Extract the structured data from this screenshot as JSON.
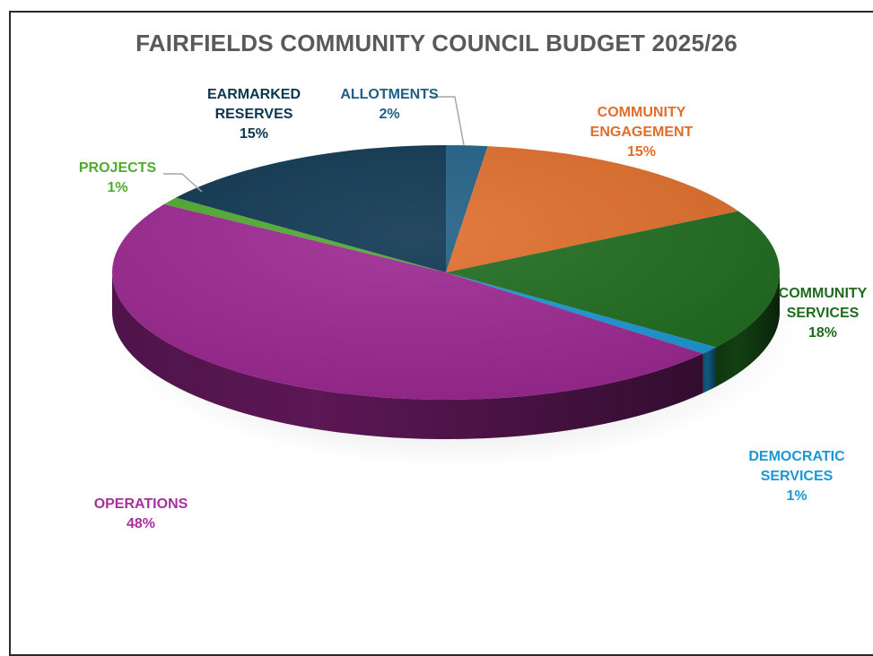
{
  "chart_data": {
    "type": "pie",
    "title": "FAIRFIELDS COMMUNITY COUNCIL BUDGET 2025/26",
    "slices": [
      {
        "label_lines": [
          "ALLOTMENTS"
        ],
        "value": 2,
        "value_label": "2%",
        "color": "#1F5F85",
        "label_color": "#1F5F85"
      },
      {
        "label_lines": [
          "COMMUNITY",
          "ENGAGEMENT"
        ],
        "value": 15,
        "value_label": "15%",
        "color": "#E06D2A",
        "label_color": "#E06D2A"
      },
      {
        "label_lines": [
          "COMMUNITY",
          "SERVICES"
        ],
        "value": 18,
        "value_label": "18%",
        "color": "#1E6B1E",
        "label_color": "#1E6B1E"
      },
      {
        "label_lines": [
          "DEMOCRATIC",
          "SERVICES"
        ],
        "value": 1,
        "value_label": "1%",
        "color": "#1B97D6",
        "label_color": "#1B97D6"
      },
      {
        "label_lines": [
          "OPERATIONS"
        ],
        "value": 48,
        "value_label": "48%",
        "color": "#9C2791",
        "label_color": "#A8309C"
      },
      {
        "label_lines": [
          "PROJECTS"
        ],
        "value": 1,
        "value_label": "1%",
        "color": "#4FAA2E",
        "label_color": "#4FAA2E"
      },
      {
        "label_lines": [
          "EARMARKED",
          "RESERVES"
        ],
        "value": 15,
        "value_label": "15%",
        "color": "#0C3550",
        "label_color": "#0C3550"
      }
    ]
  }
}
